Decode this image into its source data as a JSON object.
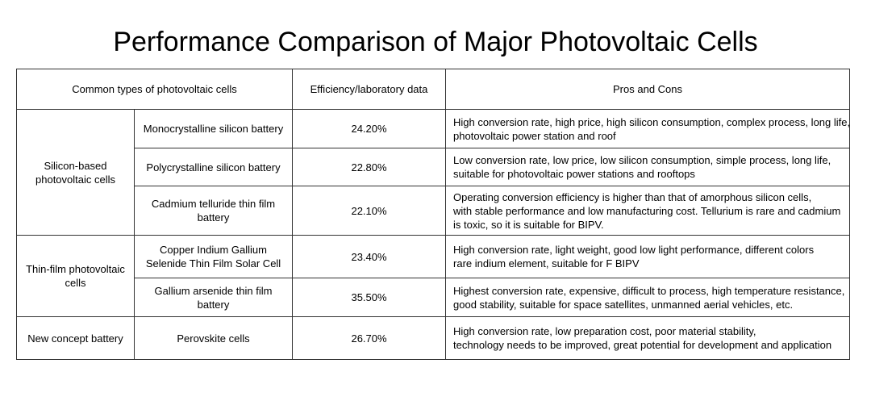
{
  "title": "Performance Comparison of Major Photovoltaic Cells",
  "headers": {
    "type": "Common types of photovoltaic cells",
    "efficiency": "Efficiency/laboratory data",
    "pros_cons": "Pros and Cons"
  },
  "groups": [
    {
      "category": "Silicon-based photovoltaic cells",
      "rows": [
        {
          "name": "Monocrystalline silicon battery",
          "efficiency": "24.20%",
          "pros_cons": [
            "High conversion rate, high price, high silicon consumption, complex process, long life,",
            "photovoltaic power station and roof"
          ]
        },
        {
          "name": "Polycrystalline silicon battery",
          "efficiency": "22.80%",
          "pros_cons": [
            "Low conversion rate, low price, low silicon consumption, simple process, long life,",
            "suitable for photovoltaic power stations and rooftops"
          ]
        },
        {
          "name": "Cadmium telluride thin film battery",
          "efficiency": "22.10%",
          "pros_cons": [
            "Operating conversion efficiency is higher than that of amorphous silicon cells,",
            "with stable performance and low manufacturing cost. Tellurium is rare and cadmium",
            "is toxic, so it is suitable for BIPV."
          ]
        }
      ]
    },
    {
      "category": "Thin-film photovoltaic cells",
      "rows": [
        {
          "name": "Copper Indium Gallium Selenide Thin Film Solar Cell",
          "efficiency": "23.40%",
          "pros_cons": [
            "High conversion rate, light weight, good low light performance, different colors",
            "rare indium element, suitable for F BIPV"
          ]
        },
        {
          "name": "Gallium arsenide thin film battery",
          "efficiency": "35.50%",
          "pros_cons": [
            "Highest conversion rate, expensive, difficult to process, high temperature resistance,",
            "good stability, suitable for space satellites, unmanned aerial vehicles, etc."
          ]
        }
      ]
    },
    {
      "category": "New concept battery",
      "rows": [
        {
          "name": "Perovskite cells",
          "efficiency": "26.70%",
          "pros_cons": [
            "High conversion rate, low preparation cost, poor material stability,",
            "technology needs to be improved, great potential for development and application"
          ]
        }
      ]
    }
  ]
}
